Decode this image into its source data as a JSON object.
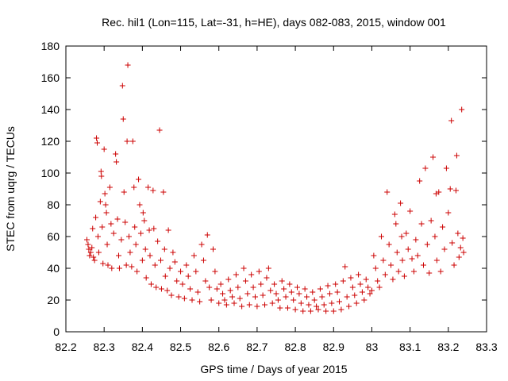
{
  "chart_data": {
    "type": "scatter",
    "title": "Rec. hil1 (Lon=115, Lat=-31, h=HE), days 082-083, 2015, window 001",
    "xlabel": "GPS time / Days of year 2015",
    "ylabel": "STEC from uqrg / TECUs",
    "xlim": [
      82.2,
      83.3
    ],
    "ylim": [
      0,
      180
    ],
    "xticks": [
      82.2,
      82.3,
      82.4,
      82.5,
      82.6,
      82.7,
      82.8,
      82.9,
      83,
      83.1,
      83.2,
      83.3
    ],
    "xtick_labels": [
      "82.2",
      "82.3",
      "82.4",
      "82.5",
      "82.6",
      "82.7",
      "82.8",
      "82.9",
      "83",
      "83.1",
      "83.2",
      "83.3"
    ],
    "yticks": [
      0,
      20,
      40,
      60,
      80,
      100,
      120,
      140,
      160,
      180
    ],
    "ytick_labels": [
      "0",
      "20",
      "40",
      "60",
      "80",
      "100",
      "120",
      "140",
      "160",
      "180"
    ],
    "grid": false,
    "marker": "plus",
    "color": "#cc0000",
    "points": [
      [
        82.255,
        58
      ],
      [
        82.258,
        55
      ],
      [
        82.26,
        52
      ],
      [
        82.262,
        48
      ],
      [
        82.265,
        50
      ],
      [
        82.268,
        53
      ],
      [
        82.27,
        65
      ],
      [
        82.272,
        47
      ],
      [
        82.275,
        45
      ],
      [
        82.278,
        72
      ],
      [
        82.28,
        122
      ],
      [
        82.282,
        119
      ],
      [
        82.284,
        60
      ],
      [
        82.286,
        50
      ],
      [
        82.29,
        82
      ],
      [
        82.292,
        101
      ],
      [
        82.293,
        98
      ],
      [
        82.295,
        66
      ],
      [
        82.297,
        43
      ],
      [
        82.3,
        115
      ],
      [
        82.302,
        87
      ],
      [
        82.304,
        80
      ],
      [
        82.306,
        75
      ],
      [
        82.308,
        55
      ],
      [
        82.31,
        42
      ],
      [
        82.315,
        91
      ],
      [
        82.318,
        68
      ],
      [
        82.32,
        40
      ],
      [
        82.325,
        62
      ],
      [
        82.33,
        112
      ],
      [
        82.332,
        107
      ],
      [
        82.335,
        71
      ],
      [
        82.338,
        48
      ],
      [
        82.34,
        40
      ],
      [
        82.345,
        58
      ],
      [
        82.348,
        155
      ],
      [
        82.35,
        134
      ],
      [
        82.352,
        88
      ],
      [
        82.355,
        69
      ],
      [
        82.358,
        42
      ],
      [
        82.36,
        120
      ],
      [
        82.362,
        168
      ],
      [
        82.365,
        60
      ],
      [
        82.368,
        50
      ],
      [
        82.372,
        41
      ],
      [
        82.375,
        120
      ],
      [
        82.378,
        91
      ],
      [
        82.38,
        66
      ],
      [
        82.383,
        55
      ],
      [
        82.386,
        38
      ],
      [
        82.39,
        96
      ],
      [
        82.393,
        80
      ],
      [
        82.396,
        62
      ],
      [
        82.4,
        45
      ],
      [
        82.402,
        75
      ],
      [
        82.405,
        70
      ],
      [
        82.408,
        52
      ],
      [
        82.41,
        34
      ],
      [
        82.415,
        91
      ],
      [
        82.418,
        64
      ],
      [
        82.42,
        48
      ],
      [
        82.423,
        30
      ],
      [
        82.428,
        89
      ],
      [
        82.43,
        65
      ],
      [
        82.433,
        42
      ],
      [
        82.436,
        28
      ],
      [
        82.44,
        57
      ],
      [
        82.445,
        127
      ],
      [
        82.448,
        45
      ],
      [
        82.45,
        27
      ],
      [
        82.455,
        88
      ],
      [
        82.458,
        52
      ],
      [
        82.46,
        35
      ],
      [
        82.465,
        26
      ],
      [
        82.468,
        64
      ],
      [
        82.472,
        40
      ],
      [
        82.476,
        23
      ],
      [
        82.48,
        50
      ],
      [
        82.485,
        44
      ],
      [
        82.49,
        32
      ],
      [
        82.495,
        22
      ],
      [
        82.5,
        38
      ],
      [
        82.505,
        30
      ],
      [
        82.51,
        21
      ],
      [
        82.515,
        42
      ],
      [
        82.52,
        35
      ],
      [
        82.525,
        27
      ],
      [
        82.53,
        20
      ],
      [
        82.535,
        48
      ],
      [
        82.54,
        38
      ],
      [
        82.545,
        25
      ],
      [
        82.55,
        19
      ],
      [
        82.555,
        55
      ],
      [
        82.56,
        45
      ],
      [
        82.565,
        32
      ],
      [
        82.57,
        61
      ],
      [
        82.575,
        28
      ],
      [
        82.58,
        20
      ],
      [
        82.585,
        52
      ],
      [
        82.59,
        38
      ],
      [
        82.595,
        27
      ],
      [
        82.6,
        18
      ],
      [
        82.605,
        30
      ],
      [
        82.61,
        24
      ],
      [
        82.615,
        20
      ],
      [
        82.62,
        17
      ],
      [
        82.625,
        33
      ],
      [
        82.63,
        26
      ],
      [
        82.635,
        22
      ],
      [
        82.64,
        18
      ],
      [
        82.645,
        36
      ],
      [
        82.65,
        28
      ],
      [
        82.655,
        21
      ],
      [
        82.66,
        16
      ],
      [
        82.665,
        40
      ],
      [
        82.67,
        32
      ],
      [
        82.675,
        24
      ],
      [
        82.68,
        17
      ],
      [
        82.685,
        36
      ],
      [
        82.69,
        28
      ],
      [
        82.695,
        22
      ],
      [
        82.7,
        16
      ],
      [
        82.705,
        38
      ],
      [
        82.71,
        30
      ],
      [
        82.715,
        23
      ],
      [
        82.72,
        17
      ],
      [
        82.725,
        34
      ],
      [
        82.73,
        40
      ],
      [
        82.735,
        26
      ],
      [
        82.74,
        18
      ],
      [
        82.745,
        30
      ],
      [
        82.75,
        24
      ],
      [
        82.755,
        20
      ],
      [
        82.76,
        15
      ],
      [
        82.765,
        32
      ],
      [
        82.77,
        27
      ],
      [
        82.775,
        22
      ],
      [
        82.78,
        15
      ],
      [
        82.785,
        30
      ],
      [
        82.79,
        25
      ],
      [
        82.795,
        20
      ],
      [
        82.8,
        14
      ],
      [
        82.805,
        28
      ],
      [
        82.81,
        24
      ],
      [
        82.815,
        18
      ],
      [
        82.82,
        13
      ],
      [
        82.825,
        27
      ],
      [
        82.83,
        22
      ],
      [
        82.835,
        17
      ],
      [
        82.84,
        13
      ],
      [
        82.845,
        25
      ],
      [
        82.85,
        20
      ],
      [
        82.855,
        16
      ],
      [
        82.86,
        14
      ],
      [
        82.865,
        27
      ],
      [
        82.87,
        22
      ],
      [
        82.875,
        17
      ],
      [
        82.88,
        13
      ],
      [
        82.885,
        29
      ],
      [
        82.89,
        24
      ],
      [
        82.895,
        18
      ],
      [
        82.9,
        13
      ],
      [
        82.905,
        30
      ],
      [
        82.91,
        25
      ],
      [
        82.915,
        19
      ],
      [
        82.92,
        14
      ],
      [
        82.925,
        32
      ],
      [
        82.93,
        41
      ],
      [
        82.935,
        22
      ],
      [
        82.94,
        16
      ],
      [
        82.945,
        34
      ],
      [
        82.95,
        28
      ],
      [
        82.955,
        23
      ],
      [
        82.96,
        18
      ],
      [
        82.965,
        36
      ],
      [
        82.97,
        30
      ],
      [
        82.975,
        25
      ],
      [
        82.98,
        20
      ],
      [
        82.985,
        33
      ],
      [
        82.99,
        28
      ],
      [
        82.995,
        24
      ],
      [
        83.0,
        26
      ],
      [
        83.005,
        48
      ],
      [
        83.01,
        40
      ],
      [
        83.015,
        32
      ],
      [
        83.02,
        28
      ],
      [
        83.025,
        60
      ],
      [
        83.03,
        45
      ],
      [
        83.035,
        36
      ],
      [
        83.04,
        88
      ],
      [
        83.045,
        55
      ],
      [
        83.05,
        42
      ],
      [
        83.055,
        33
      ],
      [
        83.06,
        74
      ],
      [
        83.063,
        68
      ],
      [
        83.066,
        50
      ],
      [
        83.07,
        38
      ],
      [
        83.075,
        81
      ],
      [
        83.078,
        60
      ],
      [
        83.08,
        45
      ],
      [
        83.085,
        35
      ],
      [
        83.09,
        62
      ],
      [
        83.095,
        52
      ],
      [
        83.1,
        76
      ],
      [
        83.105,
        46
      ],
      [
        83.11,
        38
      ],
      [
        83.115,
        58
      ],
      [
        83.12,
        48
      ],
      [
        83.125,
        95
      ],
      [
        83.13,
        68
      ],
      [
        83.135,
        42
      ],
      [
        83.14,
        103
      ],
      [
        83.145,
        55
      ],
      [
        83.15,
        37
      ],
      [
        83.155,
        70
      ],
      [
        83.16,
        110
      ],
      [
        83.165,
        60
      ],
      [
        83.168,
        87
      ],
      [
        83.17,
        45
      ],
      [
        83.175,
        88
      ],
      [
        83.18,
        38
      ],
      [
        83.185,
        66
      ],
      [
        83.19,
        52
      ],
      [
        83.195,
        103
      ],
      [
        83.2,
        75
      ],
      [
        83.205,
        90
      ],
      [
        83.208,
        133
      ],
      [
        83.21,
        56
      ],
      [
        83.215,
        42
      ],
      [
        83.22,
        89
      ],
      [
        83.222,
        111
      ],
      [
        83.225,
        62
      ],
      [
        83.228,
        47
      ],
      [
        83.232,
        53
      ],
      [
        83.235,
        140
      ],
      [
        83.238,
        59
      ],
      [
        83.24,
        50
      ]
    ]
  }
}
